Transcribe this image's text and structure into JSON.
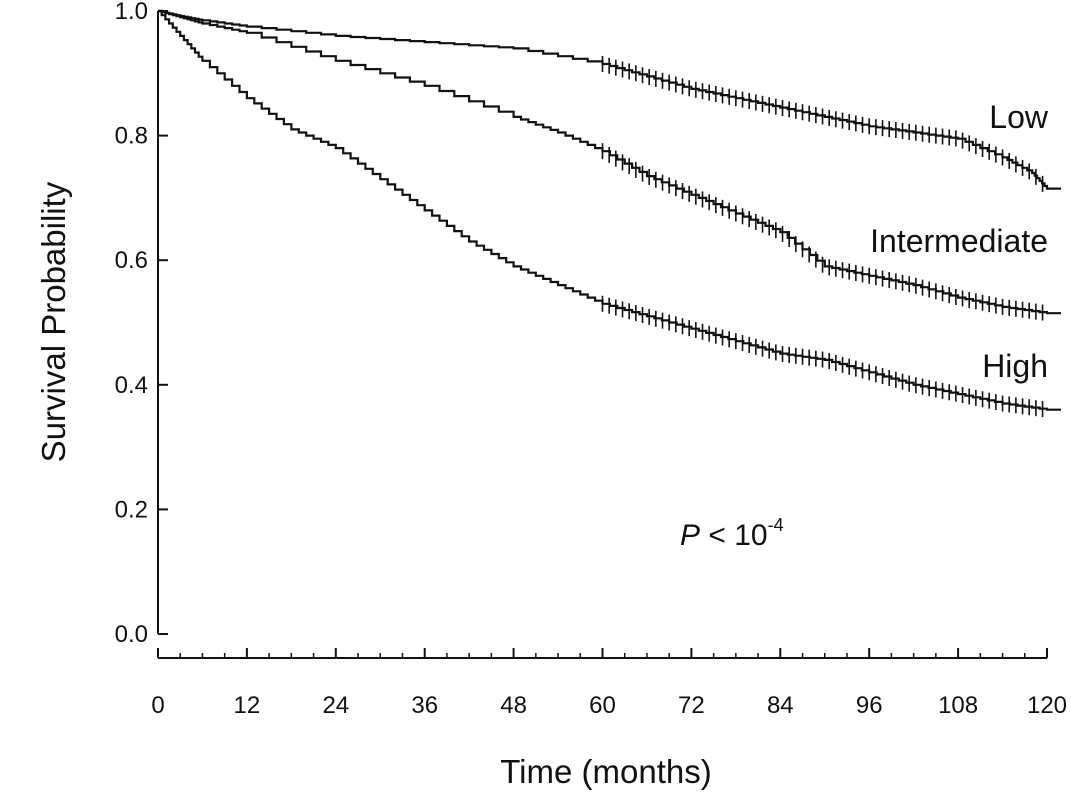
{
  "chart_data": {
    "type": "line",
    "title": "",
    "xlabel": "Time (months)",
    "ylabel": "Survival Probability",
    "xlim": [
      0,
      120
    ],
    "ylim": [
      0.0,
      1.0
    ],
    "x_ticks": [
      "0",
      "12",
      "24",
      "36",
      "48",
      "60",
      "72",
      "84",
      "96",
      "108",
      "120"
    ],
    "y_ticks": [
      "0.0",
      "0.2",
      "0.4",
      "0.6",
      "0.8",
      "1.0"
    ],
    "grid": false,
    "legend": "none",
    "annotation": {
      "p_label": "P",
      "operator": " < 10",
      "exponent": "-4"
    },
    "series": [
      {
        "name": "Low",
        "censor_from": 60,
        "x": [
          0,
          3,
          6,
          12,
          24,
          36,
          48,
          60,
          66,
          72,
          78,
          84,
          90,
          96,
          102,
          108,
          114,
          118,
          120
        ],
        "values": [
          1.0,
          0.992,
          0.985,
          0.975,
          0.96,
          0.95,
          0.94,
          0.915,
          0.895,
          0.875,
          0.86,
          0.845,
          0.83,
          0.815,
          0.805,
          0.795,
          0.765,
          0.74,
          0.715
        ]
      },
      {
        "name": "Intermediate",
        "censor_from": 60,
        "x": [
          0,
          3,
          6,
          12,
          24,
          36,
          48,
          54,
          60,
          66,
          72,
          78,
          84,
          90,
          96,
          102,
          108,
          114,
          120
        ],
        "values": [
          1.0,
          0.99,
          0.98,
          0.965,
          0.92,
          0.88,
          0.83,
          0.805,
          0.775,
          0.735,
          0.705,
          0.675,
          0.645,
          0.59,
          0.575,
          0.56,
          0.54,
          0.525,
          0.515
        ]
      },
      {
        "name": "High",
        "censor_from": 60,
        "x": [
          0,
          3,
          6,
          12,
          18,
          24,
          30,
          36,
          42,
          48,
          54,
          60,
          66,
          72,
          78,
          84,
          90,
          96,
          102,
          108,
          114,
          120
        ],
        "values": [
          1.0,
          0.96,
          0.92,
          0.86,
          0.81,
          0.78,
          0.73,
          0.68,
          0.63,
          0.59,
          0.56,
          0.53,
          0.51,
          0.49,
          0.47,
          0.45,
          0.44,
          0.42,
          0.4,
          0.385,
          0.37,
          0.36
        ]
      }
    ]
  }
}
